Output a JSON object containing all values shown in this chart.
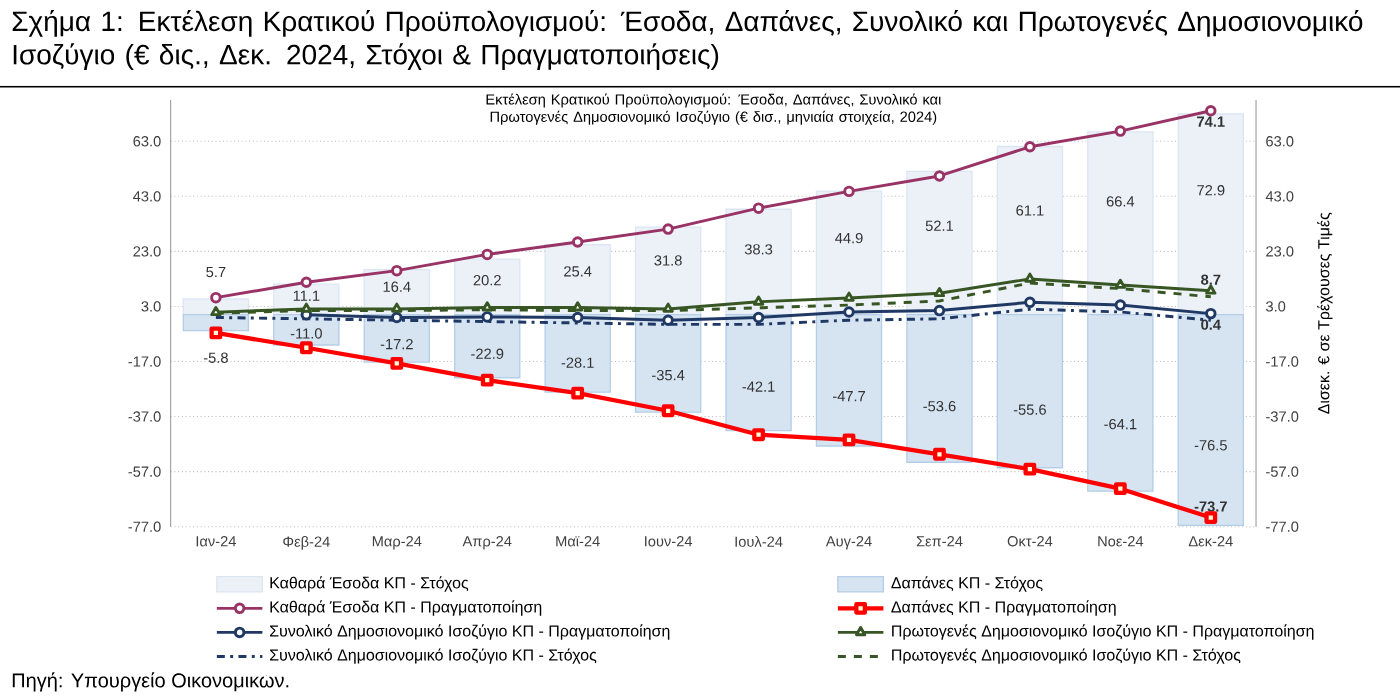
{
  "chart_data": {
    "type": "bar",
    "title": "Σχήμα 1: Εκτέλεση Κρατικού Προϋπολογισμού: Έσοδα, Δαπάνες, Συνολικό και Πρωτογενές Δημοσιονομικό Ισοζύγιο (€ δις., Δεκ. 2024, Στόχοι & Πραγματοποιήσεις)",
    "subtitle": "Εκτέλεση Κρατικού Προϋπολογισμού: Έσοδα, Δαπάνες, Συνολικό και Πρωτογενές Δημοσιονομικό Ισοζύγιο (€ δισ., μηνιαία στοιχεία, 2024)",
    "y2label": "Δισεκ. € σε Τρέχουσες Τιμές",
    "annotations": [
      "Πηγή: Υπουργείο Οικονομικών."
    ],
    "categories": [
      "Ιαν-24",
      "Φεβ-24",
      "Μαρ-24",
      "Απρ-24",
      "Μαϊ-24",
      "Ιουν-24",
      "Ιουλ-24",
      "Αυγ-24",
      "Σεπ-24",
      "Οκτ-24",
      "Νοε-24",
      "Δεκ-24"
    ],
    "series": [
      {
        "name": "Καθαρά Έσοδα ΚΠ - Στόχος",
        "color": "#dce6f2",
        "values": [
          5.7,
          11.1,
          16.4,
          20.2,
          25.4,
          31.8,
          38.3,
          44.9,
          52.1,
          61.1,
          66.4,
          72.9
        ],
        "value_labels": [
          "5.7",
          "11.1",
          "16.4",
          "20.2",
          "25.4",
          "31.8",
          "38.3",
          "44.9",
          "52.1",
          "61.1",
          "66.4",
          "72.9"
        ]
      },
      {
        "name": "Δαπάνες ΚΠ - Στόχος",
        "color": "#b4cde8",
        "values": [
          -5.8,
          -11.0,
          -17.2,
          -22.9,
          -28.1,
          -35.4,
          -42.1,
          -47.7,
          -53.6,
          -55.6,
          -64.1,
          -76.5
        ],
        "value_labels": [
          "-5.8",
          "-11.0",
          "-17.2",
          "-22.9",
          "-28.1",
          "-35.4",
          "-42.1",
          "-47.7",
          "-53.6",
          "-55.6",
          "-64.1",
          "-76.5"
        ]
      },
      {
        "name": "Καθαρά Έσοδα ΚΠ - Πραγματοποίηση",
        "type": "line",
        "color": "#993366",
        "marker": "circle",
        "line_style": "solid",
        "values": [
          6.2,
          11.8,
          16.0,
          21.9,
          26.4,
          31.1,
          38.7,
          44.8,
          50.4,
          61.0,
          66.7,
          74.1
        ],
        "value_labels": [
          null,
          null,
          null,
          null,
          null,
          null,
          null,
          null,
          null,
          null,
          null,
          "74.1"
        ]
      },
      {
        "name": "Δαπάνες ΚΠ - Πραγματοποίηση",
        "type": "line",
        "color": "#ff0000",
        "marker": "square",
        "line_style": "solid",
        "values": [
          -6.6,
          -12.0,
          -17.7,
          -23.8,
          -28.5,
          -34.9,
          -43.6,
          -45.5,
          -50.7,
          -56.1,
          -63.2,
          -73.7
        ],
        "value_labels": [
          null,
          null,
          null,
          null,
          null,
          null,
          null,
          null,
          null,
          null,
          null,
          "-73.7"
        ]
      },
      {
        "name": "Συνολικό Δημοσιονομικό Ισοζύγιο ΚΠ - Πραγματοποίηση",
        "type": "line",
        "color": "#1f3864",
        "marker": "circle",
        "line_style": "solid",
        "values": [
          null,
          0.0,
          -1.0,
          -0.8,
          -1.0,
          -2.0,
          -1.0,
          1.0,
          1.5,
          4.5,
          3.5,
          0.4
        ],
        "value_labels": [
          null,
          null,
          null,
          null,
          null,
          null,
          null,
          null,
          null,
          null,
          null,
          "0.4"
        ]
      },
      {
        "name": "Πρωτογενές Δημοσιονομικό Ισοζύγιο ΚΠ - Πραγματοποίηση",
        "type": "line",
        "color": "#375623",
        "marker": "triangle",
        "line_style": "solid",
        "values": [
          0.9,
          2.1,
          2.1,
          2.6,
          2.6,
          2.1,
          4.7,
          6.1,
          7.8,
          13.0,
          10.8,
          8.7
        ],
        "value_labels": [
          null,
          null,
          null,
          null,
          null,
          null,
          null,
          null,
          null,
          null,
          null,
          "8.7"
        ]
      },
      {
        "name": "Συνολικό Δημοσιονομικό Ισοζύγιο ΚΠ - Στόχος",
        "type": "line",
        "color": "#1f3864",
        "marker": "none",
        "line_style": "dashdot",
        "values": [
          -1.0,
          -1.5,
          -2.0,
          -2.5,
          -3.0,
          -3.5,
          -3.5,
          -2.0,
          -1.5,
          2.0,
          1.0,
          -2.0
        ]
      },
      {
        "name": "Πρωτογενές Δημοσιονομικό Ισοζύγιο ΚΠ - Στόχος",
        "type": "line",
        "color": "#375623",
        "marker": "none",
        "line_style": "dashed",
        "values": [
          0.5,
          1.5,
          1.5,
          1.8,
          1.5,
          1.5,
          2.5,
          3.5,
          5.0,
          11.5,
          9.5,
          6.5
        ]
      }
    ],
    "ylim": [
      -77,
      78
    ],
    "yticks": [
      {
        "value": -77,
        "label": "-77.0"
      },
      {
        "value": -57,
        "label": "-57.0"
      },
      {
        "value": -37,
        "label": "-37.0"
      },
      {
        "value": -17,
        "label": "-17.0"
      },
      {
        "value": 3,
        "label": "3.0"
      },
      {
        "value": 23,
        "label": "23.0"
      },
      {
        "value": 43,
        "label": "43.0"
      },
      {
        "value": 63,
        "label": "63.0"
      }
    ],
    "y2lim": [
      -77,
      78
    ],
    "y2ticks": [
      {
        "value": -77,
        "label": "-77.0"
      },
      {
        "value": -57,
        "label": "-57.0"
      },
      {
        "value": -37,
        "label": "-37.0"
      },
      {
        "value": -17,
        "label": "-17.0"
      },
      {
        "value": 3,
        "label": "3.0"
      },
      {
        "value": 23,
        "label": "23.0"
      },
      {
        "value": 43,
        "label": "43.0"
      },
      {
        "value": 63,
        "label": "63.0"
      }
    ],
    "stacked": true,
    "grid": "y",
    "legend": "bottom"
  }
}
